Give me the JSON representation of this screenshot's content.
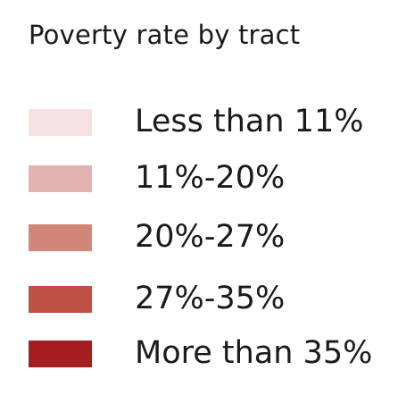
{
  "legend": {
    "title": "Poverty rate by tract",
    "items": [
      {
        "label": "Less than 11%",
        "color": "#f5e1e1"
      },
      {
        "label": "11%-20%",
        "color": "#e2b3ae"
      },
      {
        "label": "20%-27%",
        "color": "#d28679"
      },
      {
        "label": "27%-35%",
        "color": "#bf5244"
      },
      {
        "label": "More than 35%",
        "color": "#a41d21"
      }
    ]
  }
}
